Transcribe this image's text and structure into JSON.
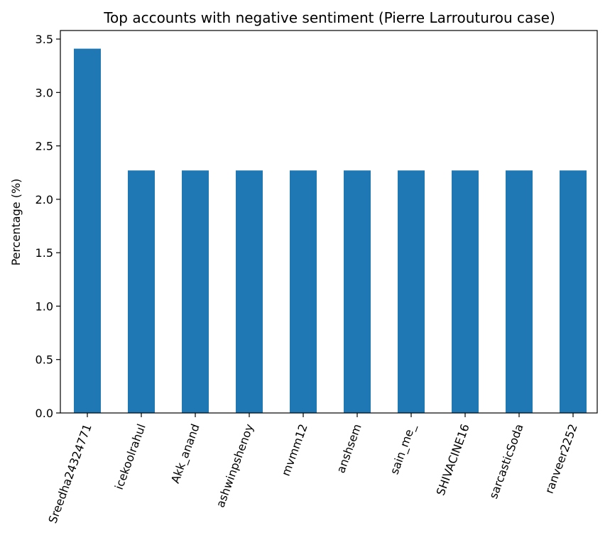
{
  "chart_data": {
    "type": "bar",
    "title": "Top accounts with negative sentiment (Pierre Larrouturou case)",
    "xlabel": "",
    "ylabel": "Percentage (%)",
    "categories": [
      "Sreedha24324771",
      "icekoolrahul",
      "Akk_anand",
      "ashwinpshenoy",
      "mvmm12",
      "anshsem",
      "sain_me_",
      "SHIVACINE16",
      "sarcasticSoda",
      "ranveer2252"
    ],
    "values": [
      3.41,
      2.27,
      2.27,
      2.27,
      2.27,
      2.27,
      2.27,
      2.27,
      2.27,
      2.27
    ],
    "ylim": [
      0,
      3.58
    ],
    "yticks": [
      "0.0",
      "0.5",
      "1.0",
      "1.5",
      "2.0",
      "2.5",
      "3.0",
      "3.5"
    ],
    "grid": false,
    "legend": "none",
    "bar_color": "#1f77b4",
    "axis_color": "#000000"
  }
}
